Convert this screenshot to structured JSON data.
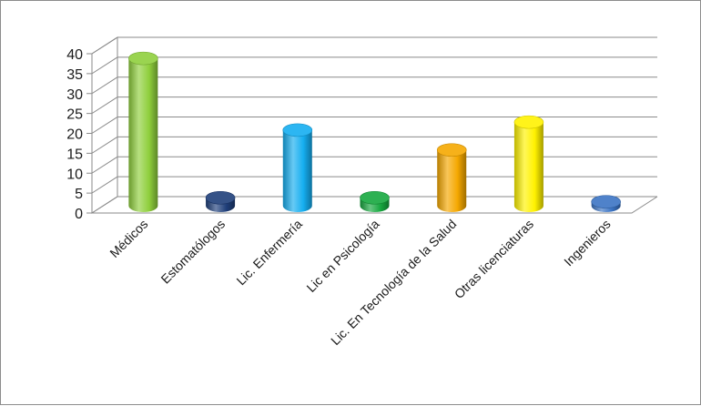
{
  "chart_data": {
    "type": "bar",
    "style": "3d-cylinder",
    "categories": [
      "Médicos",
      "Estomatólogos",
      "Lic. Enfermería",
      "Lic en Psicología",
      "Lic. En Tecnología de la Salud",
      "Otras licenciaturas",
      "Ingenieros"
    ],
    "values": [
      37,
      2,
      19,
      2,
      14,
      21,
      1
    ],
    "colors": [
      "#8fcf3c",
      "#1f3f7a",
      "#15aef0",
      "#16a83f",
      "#f5a800",
      "#fff200",
      "#3b74c4"
    ],
    "yticks": [
      "0",
      "5",
      "10",
      "15",
      "20",
      "25",
      "30",
      "35",
      "40"
    ],
    "ylim": [
      0,
      40
    ],
    "grid": true,
    "legend": "none"
  }
}
